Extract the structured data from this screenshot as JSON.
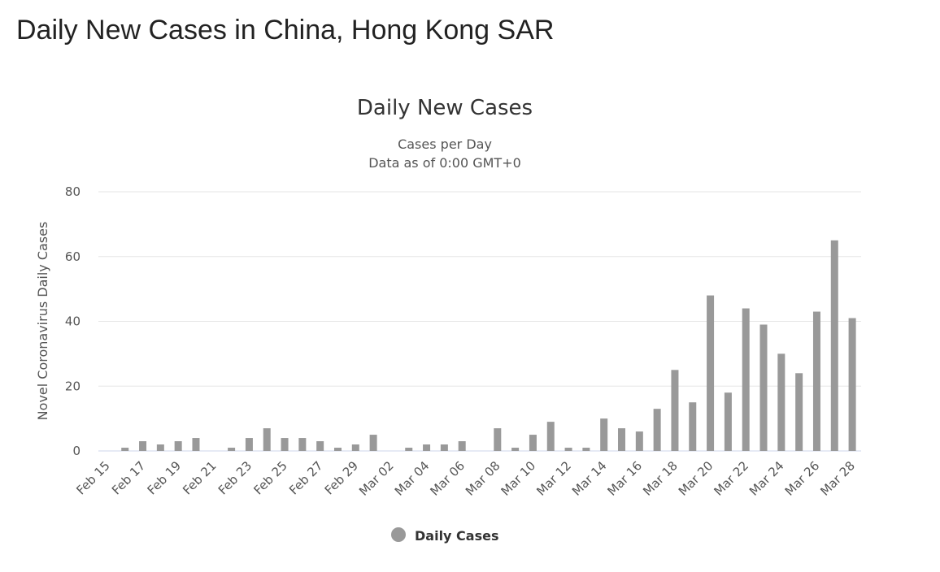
{
  "page": {
    "title": "Daily New Cases in China, Hong Kong SAR"
  },
  "colors": {
    "bar": "#999999",
    "text": "#333333",
    "grid": "#e6e6e6"
  },
  "chart_data": {
    "type": "bar",
    "title": "Daily New Cases",
    "subtitle_lines": [
      "Cases per Day",
      "Data as of 0:00 GMT+0"
    ],
    "ylabel": "Novel Coronavirus Daily Cases",
    "xlabel": "",
    "ylim": [
      0,
      80
    ],
    "yticks": [
      0,
      20,
      40,
      60,
      80
    ],
    "grid": true,
    "legend_position": "bottom-center",
    "categories": [
      "Feb 15",
      "Feb 16",
      "Feb 17",
      "Feb 18",
      "Feb 19",
      "Feb 20",
      "Feb 21",
      "Feb 22",
      "Feb 23",
      "Feb 24",
      "Feb 25",
      "Feb 26",
      "Feb 27",
      "Feb 28",
      "Feb 29",
      "Mar 01",
      "Mar 02",
      "Mar 03",
      "Mar 04",
      "Mar 05",
      "Mar 06",
      "Mar 07",
      "Mar 08",
      "Mar 09",
      "Mar 10",
      "Mar 11",
      "Mar 12",
      "Mar 13",
      "Mar 14",
      "Mar 15",
      "Mar 16",
      "Mar 17",
      "Mar 18",
      "Mar 19",
      "Mar 20",
      "Mar 21",
      "Mar 22",
      "Mar 23",
      "Mar 24",
      "Mar 25",
      "Mar 26",
      "Mar 27",
      "Mar 28"
    ],
    "x_tick_labels": [
      "Feb 15",
      "Feb 17",
      "Feb 19",
      "Feb 21",
      "Feb 23",
      "Feb 25",
      "Feb 27",
      "Feb 29",
      "Mar 02",
      "Mar 04",
      "Mar 06",
      "Mar 08",
      "Mar 10",
      "Mar 12",
      "Mar 14",
      "Mar 16",
      "Mar 18",
      "Mar 20",
      "Mar 22",
      "Mar 24",
      "Mar 26",
      "Mar 28"
    ],
    "series": [
      {
        "name": "Daily Cases",
        "values": [
          0,
          1,
          3,
          2,
          3,
          4,
          0,
          1,
          4,
          7,
          4,
          4,
          3,
          1,
          2,
          5,
          0,
          1,
          2,
          2,
          3,
          0,
          7,
          1,
          5,
          9,
          1,
          1,
          10,
          7,
          6,
          13,
          25,
          15,
          48,
          18,
          44,
          39,
          30,
          24,
          43,
          65,
          41
        ]
      }
    ]
  }
}
